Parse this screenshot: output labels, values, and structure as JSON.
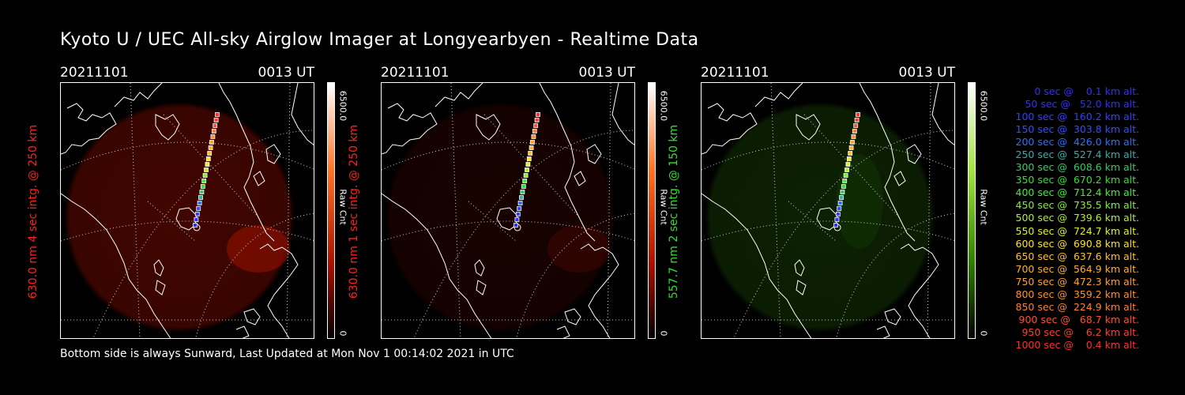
{
  "title": "Kyoto U / UEC All-sky Airglow Imager at Longyearbyen - Realtime Data",
  "footer": "Bottom side is always Sunward, Last Updated at Mon Nov  1 00:14:02 2021 in UTC",
  "panels": [
    {
      "date": "20211101",
      "time": "0013 UT",
      "ylabel": "630.0 nm 4 sec intg. @ 250 km",
      "ylabel_color": "#ff2020",
      "cbar_max": "6500.0",
      "cbar_min": "0",
      "cbar_unit": "Raw Cnt",
      "tint": "red",
      "glow": 0.55
    },
    {
      "date": "20211101",
      "time": "0013 UT",
      "ylabel": "630.0 nm 1 sec intg. @ 250 km",
      "ylabel_color": "#ff2020",
      "cbar_max": "6500.0",
      "cbar_min": "0",
      "cbar_unit": "Raw Cnt",
      "tint": "red",
      "glow": 0.2
    },
    {
      "date": "20211101",
      "time": "0013 UT",
      "ylabel": "557.7 nm 2 sec intg. @ 150 km",
      "ylabel_color": "#30e030",
      "cbar_max": "6500.0",
      "cbar_min": "0",
      "cbar_unit": "Raw Cnt",
      "tint": "green",
      "glow": 0.3
    }
  ],
  "legend": [
    {
      "text": "   0 sec @    0.1 km alt.",
      "color": "#3030ff"
    },
    {
      "text": "  50 sec @   52.0 km alt.",
      "color": "#3030ff"
    },
    {
      "text": " 100 sec @  160.2 km alt.",
      "color": "#3040ff"
    },
    {
      "text": " 150 sec @  303.8 km alt.",
      "color": "#3050ff"
    },
    {
      "text": " 200 sec @  426.0 km alt.",
      "color": "#3070ff"
    },
    {
      "text": " 250 sec @  527.4 km alt.",
      "color": "#30b0b0"
    },
    {
      "text": " 300 sec @  608.6 km alt.",
      "color": "#30d060"
    },
    {
      "text": " 350 sec @  670.2 km alt.",
      "color": "#30e030"
    },
    {
      "text": " 400 sec @  712.4 km alt.",
      "color": "#40f030"
    },
    {
      "text": " 450 sec @  735.5 km alt.",
      "color": "#80f030"
    },
    {
      "text": " 500 sec @  739.6 km alt.",
      "color": "#b0f030"
    },
    {
      "text": " 550 sec @  724.7 km alt.",
      "color": "#e0f030"
    },
    {
      "text": " 600 sec @  690.8 km alt.",
      "color": "#ffe030"
    },
    {
      "text": " 650 sec @  637.6 km alt.",
      "color": "#ffc030"
    },
    {
      "text": " 700 sec @  564.9 km alt.",
      "color": "#ffb030"
    },
    {
      "text": " 750 sec @  472.3 km alt.",
      "color": "#ffa030"
    },
    {
      "text": " 800 sec @  359.2 km alt.",
      "color": "#ff9030"
    },
    {
      "text": " 850 sec @  224.9 km alt.",
      "color": "#ff8030"
    },
    {
      "text": " 900 sec @   68.7 km alt.",
      "color": "#ff5030"
    },
    {
      "text": " 950 sec @    6.2 km alt.",
      "color": "#ff4030"
    },
    {
      "text": "1000 sec @    0.4 km alt.",
      "color": "#ff3030"
    }
  ]
}
